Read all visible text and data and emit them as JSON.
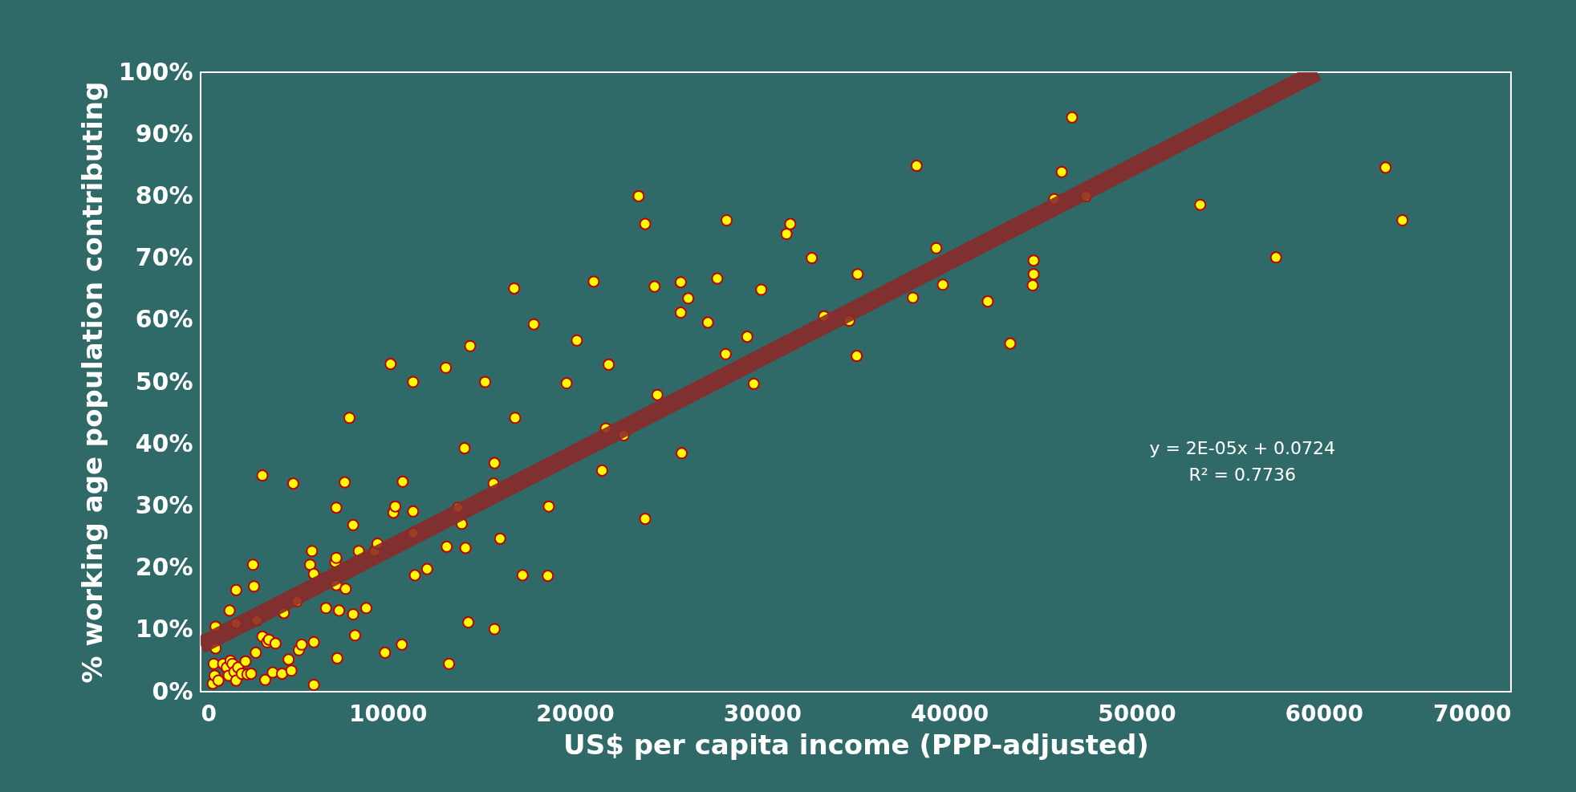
{
  "chart_data": {
    "type": "scatter",
    "xlabel": "US$ per capita income (PPP-adjusted)",
    "ylabel": "% working age population contributing",
    "xlim": [
      0,
      70000
    ],
    "xticks": [
      0,
      10000,
      20000,
      30000,
      40000,
      50000,
      60000,
      70000
    ],
    "ylim": [
      0,
      1
    ],
    "yticks": [
      {
        "value": 0,
        "label": "0%"
      },
      {
        "value": 0.1,
        "label": "10%"
      },
      {
        "value": 0.2,
        "label": "20%"
      },
      {
        "value": 0.3,
        "label": "30%"
      },
      {
        "value": 0.4,
        "label": "40%"
      },
      {
        "value": 0.5,
        "label": "50%"
      },
      {
        "value": 0.6,
        "label": "60%"
      },
      {
        "value": 0.7,
        "label": "70%"
      },
      {
        "value": 0.8,
        "label": "80%"
      },
      {
        "value": 0.9,
        "label": "90%"
      },
      {
        "value": 1,
        "label": "100%"
      }
    ],
    "grid": false,
    "annotations": [
      "y = 2E-05x + 0.0724",
      "R² = 0.7736"
    ],
    "series": [
      {
        "marker": "circle",
        "color": "#ffff00",
        "x": [
          650,
          750,
          700,
          800,
          800,
          950,
          1200,
          1400,
          1500,
          1600,
          1700,
          1800,
          1900,
          2000,
          1550,
          1900,
          1900,
          2200,
          2400,
          2500,
          2700,
          2800,
          2850,
          3000,
          2950,
          3300,
          3300,
          3450,
          3550,
          3650,
          3850,
          4000,
          4350,
          4450,
          4700,
          4850,
          4950,
          5150,
          5250,
          5400,
          5850,
          5950,
          6050,
          6050,
          6050,
          6700,
          7250,
          7200,
          7250,
          7250,
          7300,
          7400,
          7700,
          7750,
          7950,
          8150,
          8150,
          8250,
          8450,
          8850,
          9300,
          9450,
          9850,
          10150,
          10300,
          10400,
          10750,
          10800,
          11350,
          11350,
          11350,
          11450,
          12100,
          13100,
          13150,
          13270,
          13750,
          13950,
          14100,
          14150,
          14300,
          14400,
          15200,
          15650,
          15700,
          15700,
          16000,
          16750,
          16800,
          17200,
          17800,
          18550,
          18600,
          19550,
          20100,
          21000,
          21450,
          21650,
          21800,
          22600,
          23400,
          23750,
          23750,
          24250,
          24400,
          25650,
          25700,
          25650,
          26050,
          27100,
          27600,
          28100,
          28050,
          29200,
          29550,
          29950,
          31300,
          31500,
          32650,
          33300,
          34650,
          35050,
          35100,
          38050,
          38250,
          39300,
          39650,
          42050,
          43250,
          44450,
          44500,
          44500,
          45600,
          46000,
          46550,
          47300,
          53400,
          57450,
          63300,
          64200
        ],
        "values": [
          0.013,
          0.026,
          0.045,
          0.07,
          0.105,
          0.018,
          0.045,
          0.039,
          0.026,
          0.05,
          0.045,
          0.032,
          0.018,
          0.039,
          0.131,
          0.164,
          0.11,
          0.029,
          0.049,
          0.028,
          0.029,
          0.205,
          0.17,
          0.115,
          0.063,
          0.349,
          0.089,
          0.019,
          0.08,
          0.084,
          0.031,
          0.078,
          0.029,
          0.127,
          0.052,
          0.034,
          0.336,
          0.146,
          0.067,
          0.076,
          0.205,
          0.227,
          0.19,
          0.011,
          0.08,
          0.135,
          0.297,
          0.209,
          0.216,
          0.172,
          0.054,
          0.131,
          0.338,
          0.166,
          0.442,
          0.269,
          0.125,
          0.091,
          0.227,
          0.135,
          0.227,
          0.239,
          0.063,
          0.529,
          0.289,
          0.299,
          0.076,
          0.339,
          0.5,
          0.291,
          0.256,
          0.188,
          0.198,
          0.523,
          0.234,
          0.045,
          0.297,
          0.271,
          0.393,
          0.232,
          0.112,
          0.558,
          0.5,
          0.336,
          0.369,
          0.101,
          0.247,
          0.651,
          0.442,
          0.188,
          0.593,
          0.187,
          0.299,
          0.498,
          0.567,
          0.662,
          0.357,
          0.425,
          0.528,
          0.414,
          0.8,
          0.755,
          0.279,
          0.654,
          0.479,
          0.661,
          0.385,
          0.612,
          0.635,
          0.596,
          0.667,
          0.761,
          0.545,
          0.573,
          0.497,
          0.649,
          0.739,
          0.755,
          0.7,
          0.606,
          0.599,
          0.542,
          0.674,
          0.636,
          0.849,
          0.716,
          0.657,
          0.63,
          0.562,
          0.656,
          0.674,
          0.696,
          0.795,
          0.839,
          0.927,
          0.8,
          0.786,
          0.701,
          0.846,
          0.761
        ]
      },
      {
        "type": "line",
        "marker": "none",
        "color": "#8b2a2a",
        "x": [
          0,
          59650
        ],
        "values": [
          0.075,
          1.0
        ]
      }
    ]
  }
}
